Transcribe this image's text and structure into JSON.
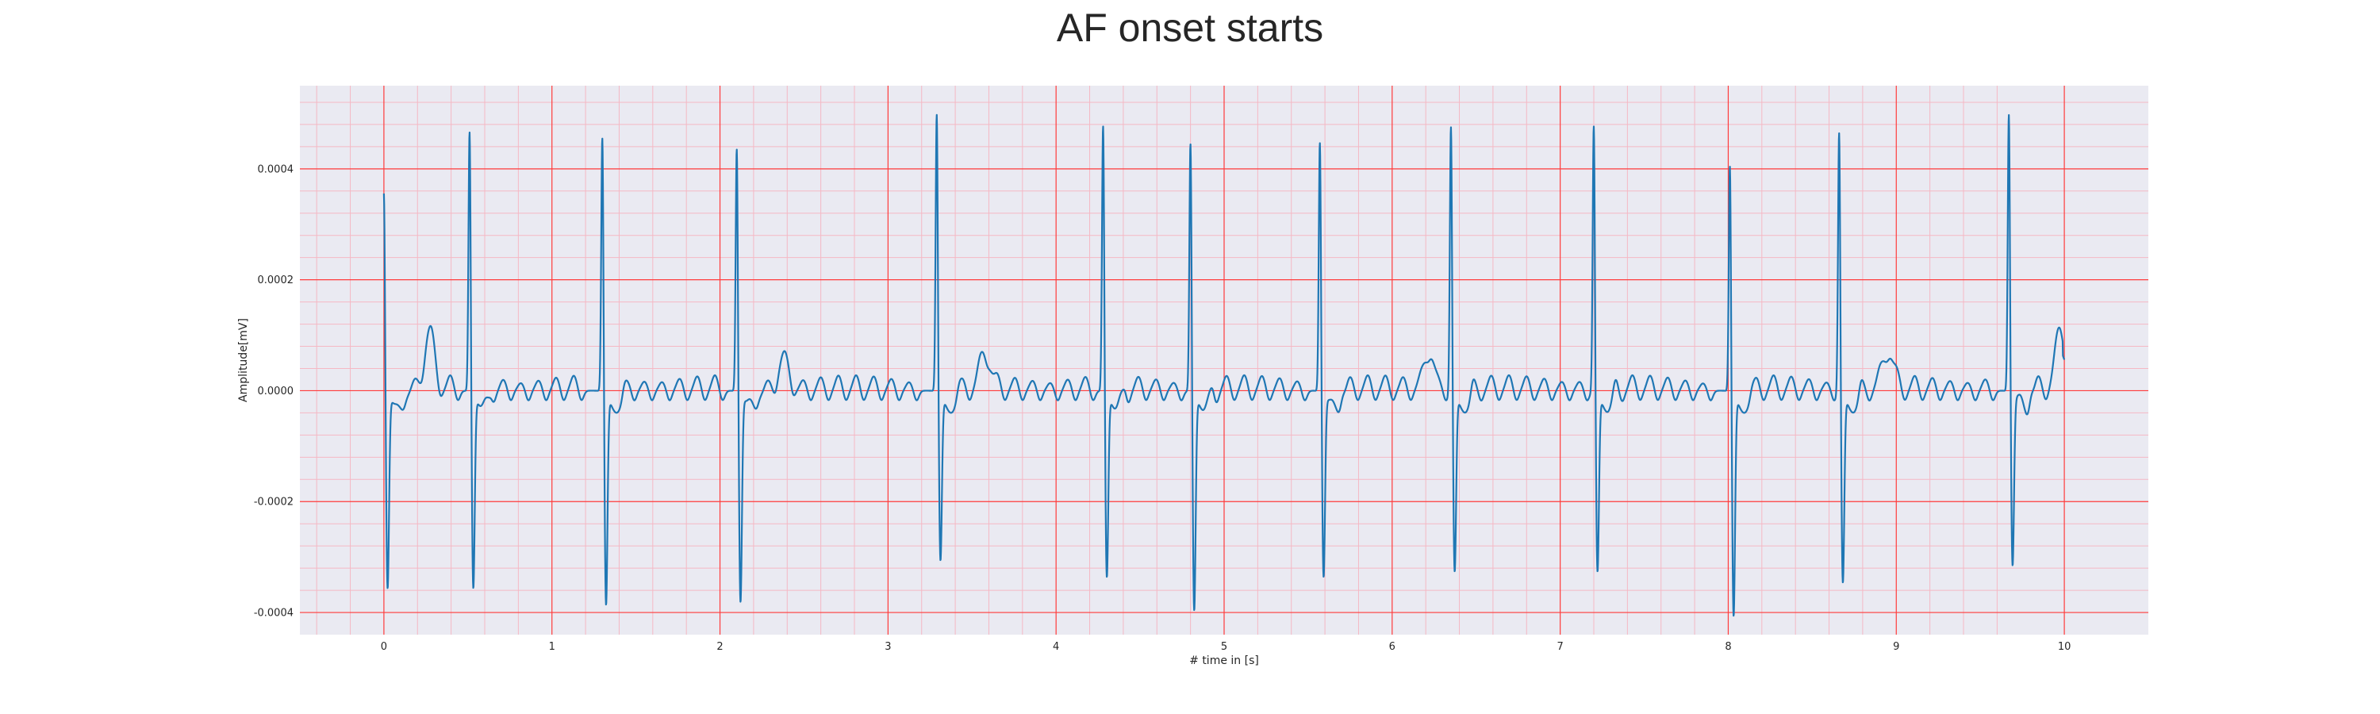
{
  "chart_data": {
    "type": "line",
    "title": "AF onset starts",
    "xlabel": "# time in [s]",
    "ylabel": "Amplitude[mV]",
    "xlim": [
      -0.5,
      10.5
    ],
    "ylim": [
      -0.00044,
      0.00055
    ],
    "xticks": [
      0,
      1,
      2,
      3,
      4,
      5,
      6,
      7,
      8,
      9,
      10
    ],
    "xtick_labels": [
      "0",
      "1",
      "2",
      "3",
      "4",
      "5",
      "6",
      "7",
      "8",
      "9",
      "10"
    ],
    "yticks": [
      -0.0004,
      -0.0002,
      0.0,
      0.0002,
      0.0004
    ],
    "ytick_labels": [
      "-0.0004",
      "-0.0002",
      "0.0000",
      "0.0002",
      "0.0004"
    ],
    "grid": "major and minor",
    "colors": {
      "line": "#1f77b4",
      "background": "#eaeaf2",
      "major_grid": "#ff3b3b",
      "minor_grid": "#f5b8c4"
    },
    "series": [
      {
        "beats": [
          {
            "t": 0.0,
            "r": 0.00037,
            "s": -0.00035
          },
          {
            "t": 0.51,
            "r": 0.00048,
            "s": -0.00035
          },
          {
            "t": 1.3,
            "r": 0.00047,
            "s": -0.00038
          },
          {
            "t": 2.1,
            "r": 0.00045,
            "s": -0.000375
          },
          {
            "t": 3.29,
            "r": 0.00051,
            "s": -0.0003
          },
          {
            "t": 4.28,
            "r": 0.00049,
            "s": -0.00033
          },
          {
            "t": 4.8,
            "r": 0.00046,
            "s": -0.00039
          },
          {
            "t": 5.57,
            "r": 0.00046,
            "s": -0.00033
          },
          {
            "t": 6.35,
            "r": 0.00049,
            "s": -0.00032
          },
          {
            "t": 7.2,
            "r": 0.00049,
            "s": -0.00032
          },
          {
            "t": 8.01,
            "r": 0.00042,
            "s": -0.0004
          },
          {
            "t": 8.66,
            "r": 0.00048,
            "s": -0.00034
          },
          {
            "t": 9.67,
            "r": 0.00051,
            "s": -0.00031
          }
        ],
        "t_waves": [
          {
            "t": 0.27,
            "a": 0.0001
          },
          {
            "t": 2.38,
            "a": 6e-05
          },
          {
            "t": 3.58,
            "a": 6.5e-05
          },
          {
            "t": 6.22,
            "a": 7e-05
          },
          {
            "t": 8.95,
            "a": 7e-05
          },
          {
            "t": 9.98,
            "a": 0.00011
          }
        ],
        "end_value": 4e-05
      }
    ]
  }
}
